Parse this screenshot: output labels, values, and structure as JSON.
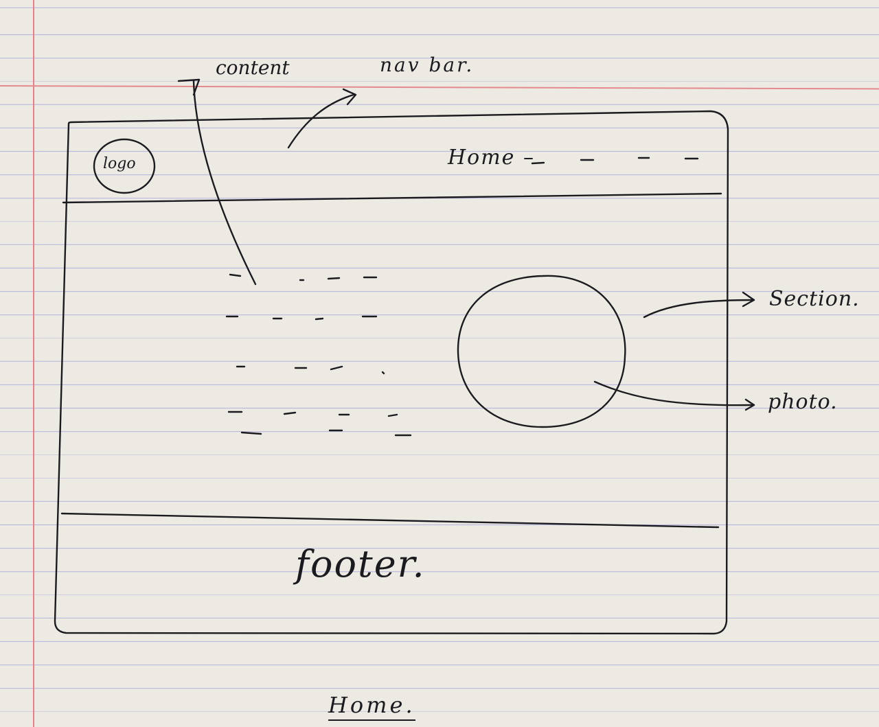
{
  "sketch": {
    "page_title": "Home.",
    "navbar": {
      "logo_label": "logo",
      "menu_text": "Home –"
    },
    "annotations": {
      "content": "content",
      "nav_bar": "nav bar.",
      "section": "Section.",
      "photo": "photo."
    },
    "footer_text": "footer."
  },
  "colors": {
    "ink": "#1b1b1f",
    "paper": "#eceae3",
    "ruled_line": "#b9b8dc",
    "margin_line": "#e87f86"
  }
}
